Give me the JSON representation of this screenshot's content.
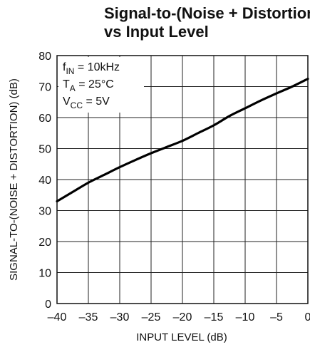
{
  "chart_data": {
    "type": "line",
    "title_line1": "Signal-to-(Noise + Distortion)",
    "title_line2": "vs Input Level",
    "xlabel": "INPUT LEVEL (dB)",
    "ylabel": "SIGNAL-TO-(NOISE + DISTORTION) (dB)",
    "xlim": [
      -40,
      0
    ],
    "ylim": [
      0,
      80
    ],
    "x_ticks": [
      "–40",
      "–35",
      "–30",
      "–25",
      "–20",
      "–15",
      "–10",
      "–5",
      "0"
    ],
    "y_ticks": [
      "0",
      "10",
      "20",
      "30",
      "40",
      "50",
      "60",
      "70",
      "80"
    ],
    "grid": true,
    "annotations": {
      "fin_main": "f",
      "fin_sub": "IN",
      "fin_rest": " = 10kHz",
      "ta_main": "T",
      "ta_sub": "A",
      "ta_rest": " = 25°C",
      "vcc_main": "V",
      "vcc_sub": "CC",
      "vcc_rest": " = 5V"
    },
    "series": [
      {
        "x": [
          -40,
          -37.5,
          -35,
          -32.5,
          -30,
          -27.5,
          -25,
          -22.5,
          -20,
          -17.5,
          -15,
          -12.5,
          -10,
          -7.5,
          -5,
          -2.5,
          0
        ],
        "y": [
          33,
          36,
          39,
          41.5,
          44,
          46.3,
          48.5,
          50.5,
          52.5,
          55,
          57.5,
          60.5,
          63,
          65.5,
          67.8,
          70,
          72.5
        ]
      }
    ]
  }
}
